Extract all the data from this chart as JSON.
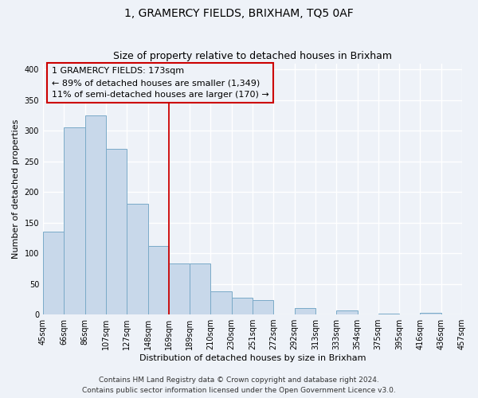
{
  "title": "1, GRAMERCY FIELDS, BRIXHAM, TQ5 0AF",
  "subtitle": "Size of property relative to detached houses in Brixham",
  "xlabel": "Distribution of detached houses by size in Brixham",
  "ylabel": "Number of detached properties",
  "bar_labels": [
    "45sqm",
    "66sqm",
    "86sqm",
    "107sqm",
    "127sqm",
    "148sqm",
    "169sqm",
    "189sqm",
    "210sqm",
    "230sqm",
    "251sqm",
    "272sqm",
    "292sqm",
    "313sqm",
    "333sqm",
    "354sqm",
    "375sqm",
    "395sqm",
    "416sqm",
    "436sqm",
    "457sqm"
  ],
  "bar_values": [
    135,
    305,
    325,
    270,
    181,
    112,
    83,
    83,
    38,
    27,
    23,
    0,
    10,
    0,
    7,
    0,
    1,
    0,
    3,
    0
  ],
  "bar_color": "#c8d8ea",
  "bar_edge_color": "#7aaac8",
  "vline_x_index": 6,
  "vline_color": "#cc0000",
  "annotation_text": "1 GRAMERCY FIELDS: 173sqm\n← 89% of detached houses are smaller (1,349)\n11% of semi-detached houses are larger (170) →",
  "ylim": [
    0,
    410
  ],
  "yticks": [
    0,
    50,
    100,
    150,
    200,
    250,
    300,
    350,
    400
  ],
  "footnote": "Contains HM Land Registry data © Crown copyright and database right 2024.\nContains public sector information licensed under the Open Government Licence v3.0.",
  "bg_color": "#eef2f8",
  "grid_color": "#ffffff",
  "title_fontsize": 10,
  "subtitle_fontsize": 9,
  "axis_label_fontsize": 8,
  "tick_fontsize": 7,
  "annotation_fontsize": 8,
  "footnote_fontsize": 6.5
}
